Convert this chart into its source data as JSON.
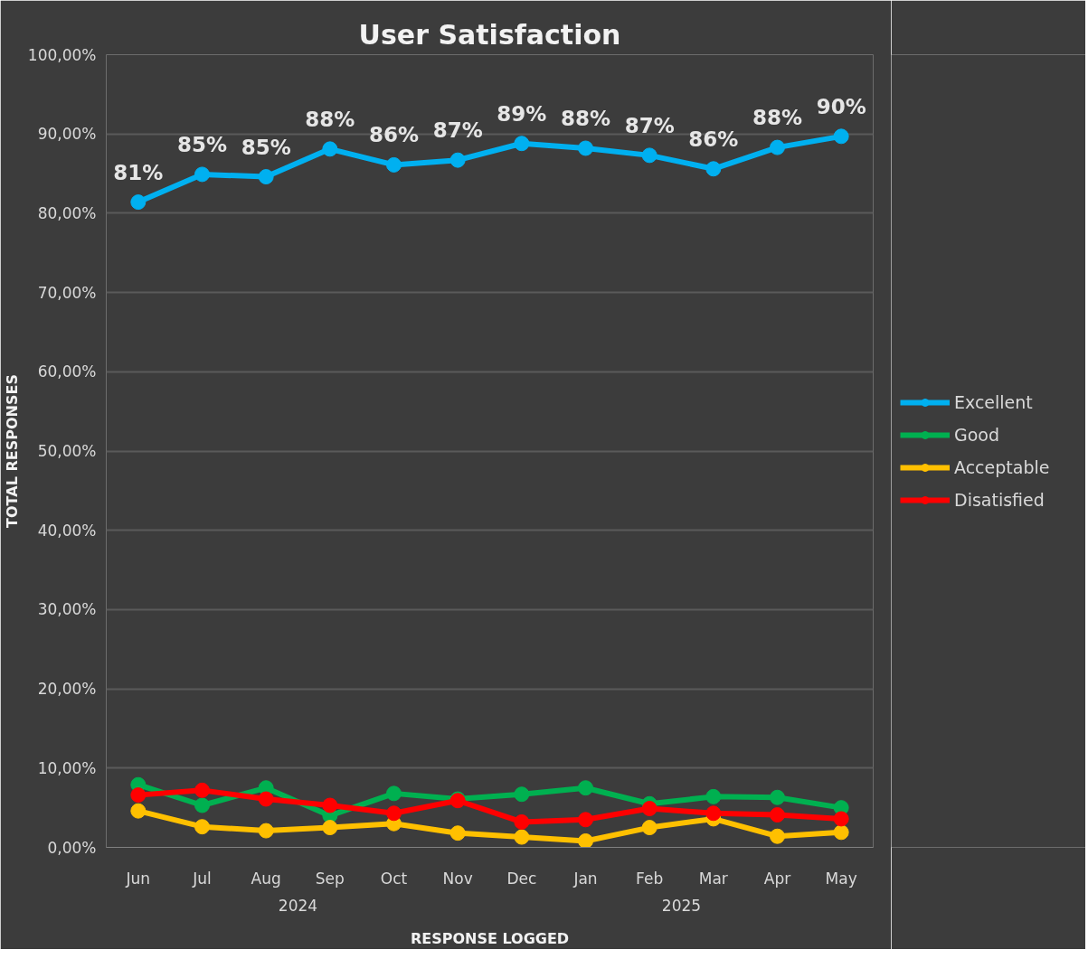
{
  "chart_data": {
    "type": "line",
    "title": "User Satisfaction",
    "xlabel": "RESPONSE LOGGED",
    "ylabel": "TOTAL RESPONSES",
    "categories": [
      "Jun",
      "Jul",
      "Aug",
      "Sep",
      "Oct",
      "Nov",
      "Dec",
      "Jan",
      "Feb",
      "Mar",
      "Apr",
      "May"
    ],
    "series": [
      {
        "name": "Excellent",
        "color": "#00b0f0",
        "values": [
          81.4,
          84.9,
          84.6,
          88.1,
          86.1,
          86.7,
          88.8,
          88.2,
          87.3,
          85.6,
          88.3,
          89.7
        ],
        "value_labels": [
          "81%",
          "85%",
          "85%",
          "88%",
          "86%",
          "87%",
          "89%",
          "88%",
          "87%",
          "86%",
          "88%",
          "90%"
        ]
      },
      {
        "name": "Good",
        "color": "#00b050",
        "values": [
          7.9,
          5.3,
          7.5,
          4.0,
          6.8,
          6.1,
          6.7,
          7.5,
          5.5,
          6.4,
          6.3,
          5.0
        ]
      },
      {
        "name": "Acceptable",
        "color": "#ffc000",
        "values": [
          4.6,
          2.6,
          2.1,
          2.5,
          3.0,
          1.8,
          1.3,
          0.8,
          2.5,
          3.6,
          1.4,
          1.9
        ]
      },
      {
        "name": "Disatisfied",
        "color": "#ff0000",
        "values": [
          6.6,
          7.2,
          6.1,
          5.3,
          4.3,
          5.9,
          3.2,
          3.5,
          4.9,
          4.3,
          4.1,
          3.6
        ]
      }
    ],
    "ylim": [
      0,
      100
    ],
    "yticks": [
      {
        "value": 0,
        "label": "0,00%"
      },
      {
        "value": 10,
        "label": "10,00%"
      },
      {
        "value": 20,
        "label": "20,00%"
      },
      {
        "value": 30,
        "label": "30,00%"
      },
      {
        "value": 40,
        "label": "40,00%"
      },
      {
        "value": 50,
        "label": "50,00%"
      },
      {
        "value": 60,
        "label": "60,00%"
      },
      {
        "value": 70,
        "label": "70,00%"
      },
      {
        "value": 80,
        "label": "80,00%"
      },
      {
        "value": 90,
        "label": "90,00%"
      },
      {
        "value": 100,
        "label": "100,00%"
      }
    ],
    "annotations": [
      "2024",
      "2025"
    ],
    "grid": "y",
    "legend": "right",
    "marker": "circle",
    "line_style": "solid"
  }
}
